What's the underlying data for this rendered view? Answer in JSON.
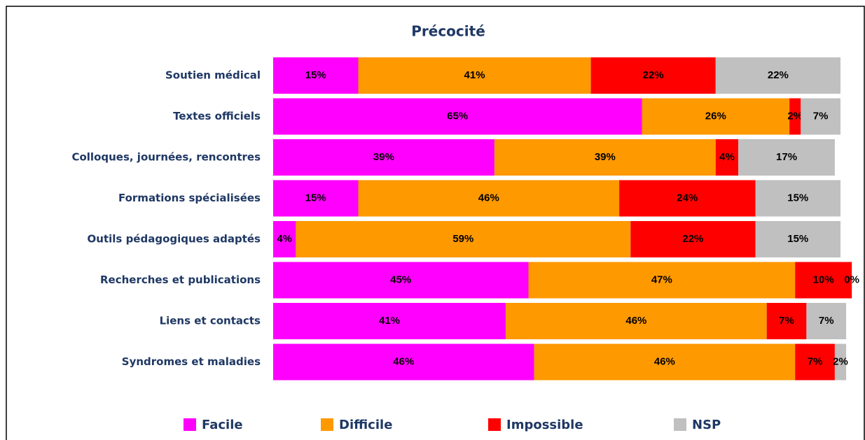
{
  "chart_data": {
    "type": "stacked-bar-horizontal",
    "title": "Précocité",
    "categories": [
      "Soutien médical",
      "Textes officiels",
      "Colloques, journées, rencontres",
      "Formations spécialisées",
      "Outils pédagogiques adaptés",
      "Recherches et publications",
      "Liens et contacts",
      "Syndromes et maladies"
    ],
    "series": [
      {
        "name": "Facile",
        "color": "#ff00ff",
        "values": [
          15,
          65,
          39,
          15,
          4,
          45,
          41,
          46
        ],
        "value_labels": [
          "15%",
          "65%",
          "39%",
          "15%",
          "4%",
          "45%",
          "41%",
          "46%"
        ]
      },
      {
        "name": "Difficile",
        "color": "#ff9900",
        "values": [
          41,
          26,
          39,
          46,
          59,
          47,
          46,
          46
        ],
        "value_labels": [
          "41%",
          "26%",
          "39%",
          "46%",
          "59%",
          "47%",
          "46%",
          "46%"
        ]
      },
      {
        "name": "Impossible",
        "color": "#ff0000",
        "values": [
          22,
          2,
          4,
          24,
          22,
          10,
          7,
          7
        ],
        "value_labels": [
          "22%",
          "2%",
          "4%",
          "24%",
          "22%",
          "10%",
          "7%",
          "7%"
        ]
      },
      {
        "name": "NSP",
        "color": "#c0c0c0",
        "values": [
          22,
          7,
          17,
          15,
          15,
          0,
          7,
          2
        ],
        "value_labels": [
          "22%",
          "7%",
          "17%",
          "15%",
          "15%",
          "0%",
          "7%",
          "2%"
        ]
      }
    ],
    "legend": "bottom"
  }
}
